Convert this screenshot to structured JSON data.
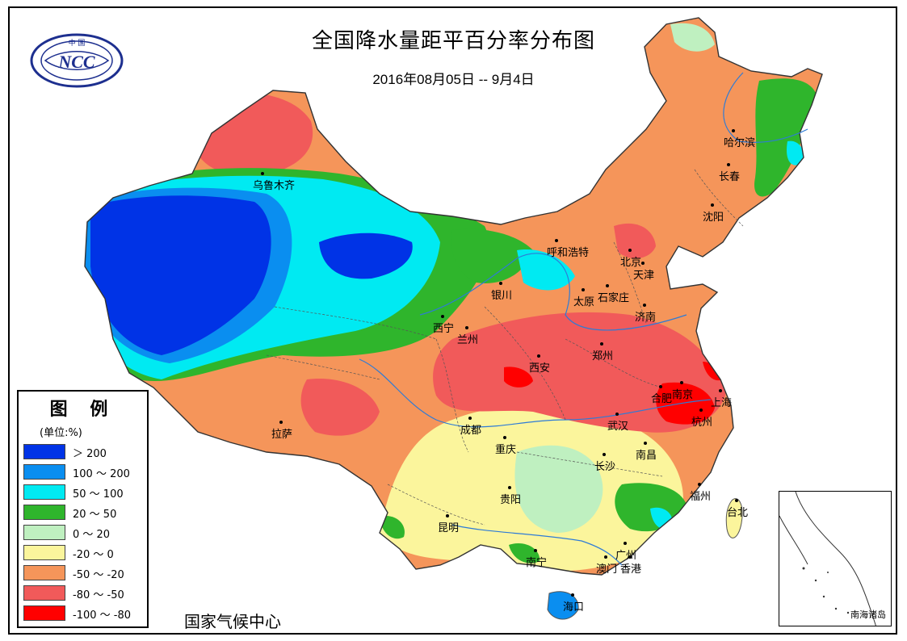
{
  "map": {
    "title": "全国降水量距平百分率分布图",
    "date_range": "2016年08月05日 -- 9月4日",
    "credit": "国家气候中心",
    "inset_label": "南海诸岛",
    "logo": {
      "top_text": "中 国",
      "text": "NCC"
    }
  },
  "legend": {
    "title": "图 例",
    "unit": "(单位:%)",
    "items": [
      {
        "label": "＞ 200",
        "color": "#0033e6"
      },
      {
        "label": "100 ～ 200",
        "color": "#0a8ef0"
      },
      {
        "label": "50 ～ 100",
        "color": "#00eaf2"
      },
      {
        "label": "20 ～ 50",
        "color": "#2fb52c"
      },
      {
        "label": "0 ～ 20",
        "color": "#bff0c0"
      },
      {
        "label": "-20 ～ 0",
        "color": "#fbf59c"
      },
      {
        "label": "-50 ～ -20",
        "color": "#f5955a"
      },
      {
        "label": "-80 ～ -50",
        "color": "#f15a5a"
      },
      {
        "label": "-100 ～ -80",
        "color": "#ff0000"
      }
    ]
  },
  "cities": [
    {
      "name": "乌鲁木齐"
    },
    {
      "name": "哈尔滨"
    },
    {
      "name": "长春"
    },
    {
      "name": "沈阳"
    },
    {
      "name": "呼和浩特"
    },
    {
      "name": "北京"
    },
    {
      "name": "天津"
    },
    {
      "name": "银川"
    },
    {
      "name": "太原"
    },
    {
      "name": "石家庄"
    },
    {
      "name": "济南"
    },
    {
      "name": "西宁"
    },
    {
      "name": "兰州"
    },
    {
      "name": "西安"
    },
    {
      "name": "郑州"
    },
    {
      "name": "合肥"
    },
    {
      "name": "南京"
    },
    {
      "name": "上海"
    },
    {
      "name": "杭州"
    },
    {
      "name": "拉萨"
    },
    {
      "name": "成都"
    },
    {
      "name": "武汉"
    },
    {
      "name": "重庆"
    },
    {
      "name": "南昌"
    },
    {
      "name": "长沙"
    },
    {
      "name": "贵阳"
    },
    {
      "name": "福州"
    },
    {
      "name": "台北"
    },
    {
      "name": "昆明"
    },
    {
      "name": "南宁"
    },
    {
      "name": "广州"
    },
    {
      "name": "澳门"
    },
    {
      "name": "香港"
    },
    {
      "name": "海口"
    }
  ]
}
